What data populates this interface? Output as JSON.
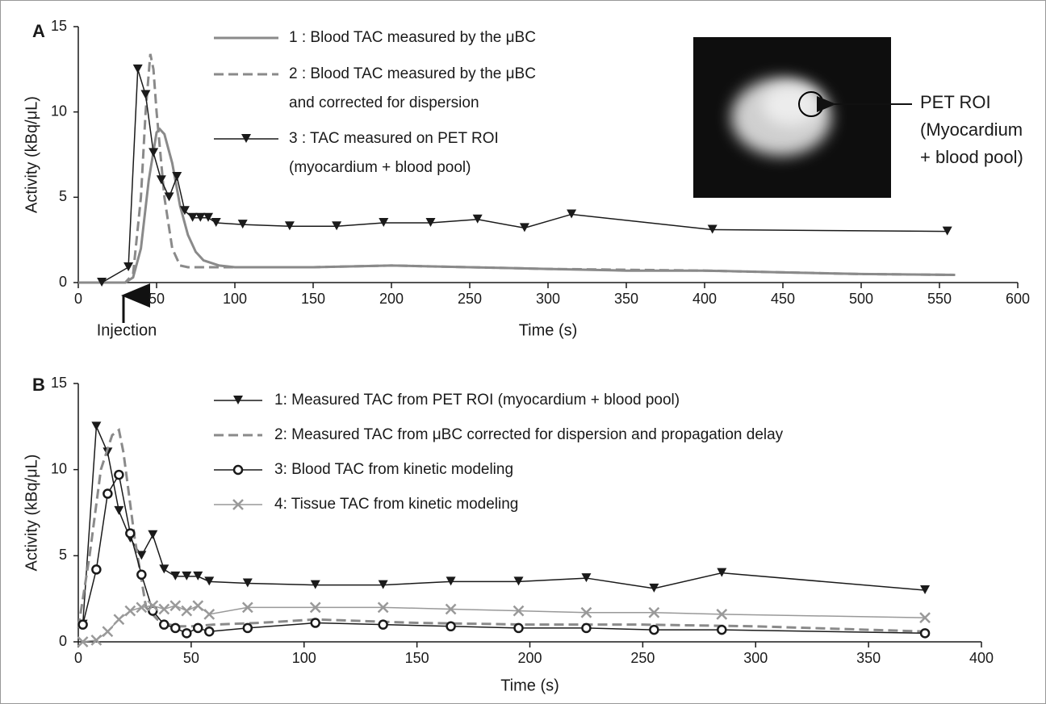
{
  "chart_data": [
    {
      "type": "line",
      "panel_label": "A",
      "xlabel": "Time (s)",
      "ylabel": "Activity (kBq/μL)",
      "xlim": [
        0,
        600
      ],
      "xticks": [
        0,
        50,
        100,
        150,
        200,
        250,
        300,
        350,
        400,
        450,
        500,
        550,
        600
      ],
      "ylim": [
        0,
        15
      ],
      "yticks": [
        0,
        5,
        10,
        15
      ],
      "annotations": [
        "Injection",
        "PET ROI\n(Myocardium\n+ blood pool)"
      ],
      "series": [
        {
          "name": "1 : Blood TAC measured by the μBC",
          "color": "#8a8a8a",
          "dash": false,
          "marker": null,
          "x": [
            0,
            20,
            30,
            35,
            40,
            45,
            50,
            52,
            55,
            60,
            65,
            70,
            75,
            80,
            90,
            100,
            150,
            200,
            250,
            300,
            350,
            400,
            450,
            500,
            560
          ],
          "values": [
            0,
            0,
            0,
            0.3,
            2,
            6,
            8.8,
            9,
            8.7,
            7,
            4.5,
            2.8,
            1.8,
            1.3,
            1.0,
            0.9,
            0.9,
            1.0,
            0.9,
            0.8,
            0.7,
            0.7,
            0.6,
            0.5,
            0.45
          ]
        },
        {
          "name": "2 : Blood TAC measured by the μBC\nand corrected for dispersion",
          "color": "#8a8a8a",
          "dash": true,
          "marker": null,
          "x": [
            0,
            30,
            35,
            40,
            43,
            46,
            48,
            50,
            55,
            60,
            65,
            70,
            80,
            100,
            150,
            200,
            300,
            400,
            500,
            560
          ],
          "values": [
            0,
            0,
            0.5,
            5,
            10,
            13.4,
            12.5,
            10,
            5,
            2,
            1,
            0.9,
            0.9,
            0.9,
            0.9,
            1.0,
            0.8,
            0.7,
            0.5,
            0.45
          ]
        },
        {
          "name": "3 : TAC measured on PET ROI\n(myocardium + blood pool)",
          "color": "#1a1a1a",
          "dash": false,
          "marker": "triangle",
          "x": [
            15,
            32,
            38,
            43,
            48,
            53,
            58,
            63,
            68,
            73,
            78,
            83,
            88,
            105,
            135,
            165,
            195,
            225,
            255,
            285,
            315,
            405,
            555
          ],
          "values": [
            0,
            0.9,
            12.5,
            11,
            7.6,
            6.0,
            5.0,
            6.2,
            4.2,
            3.8,
            3.8,
            3.8,
            3.5,
            3.4,
            3.3,
            3.3,
            3.5,
            3.5,
            3.7,
            3.2,
            4.0,
            3.1,
            3.0
          ]
        }
      ]
    },
    {
      "type": "line",
      "panel_label": "B",
      "xlabel": "Time (s)",
      "ylabel": "Activity (kBq/μL)",
      "xlim": [
        0,
        400
      ],
      "xticks": [
        0,
        50,
        100,
        150,
        200,
        250,
        300,
        350,
        400
      ],
      "ylim": [
        0,
        15
      ],
      "yticks": [
        0,
        5,
        10,
        15
      ],
      "series": [
        {
          "name": "1: Measured TAC from PET ROI  (myocardium + blood pool)",
          "color": "#1a1a1a",
          "dash": false,
          "marker": "triangle",
          "x": [
            2,
            8,
            13,
            18,
            23,
            28,
            33,
            38,
            43,
            48,
            53,
            58,
            75,
            105,
            135,
            165,
            195,
            225,
            255,
            285,
            375
          ],
          "values": [
            1.0,
            12.5,
            11,
            7.6,
            6.0,
            5.0,
            6.2,
            4.2,
            3.8,
            3.8,
            3.8,
            3.5,
            3.4,
            3.3,
            3.3,
            3.5,
            3.5,
            3.7,
            3.1,
            4.0,
            3.0
          ]
        },
        {
          "name": "2: Measured TAC from μBC corrected for dispersion and propagation delay",
          "color": "#8a8a8a",
          "dash": true,
          "marker": null,
          "x": [
            0,
            5,
            10,
            15,
            18,
            20,
            25,
            30,
            35,
            40,
            45,
            50,
            60,
            80,
            105,
            150,
            200,
            250,
            300,
            350,
            375
          ],
          "values": [
            0.8,
            5,
            10,
            12,
            12.3,
            11,
            6,
            2,
            1.3,
            1.0,
            0.9,
            0.9,
            1.0,
            1.1,
            1.3,
            1.1,
            1.0,
            1.0,
            0.9,
            0.7,
            0.6
          ]
        },
        {
          "name": "3: Blood TAC from kinetic modeling",
          "color": "#1a1a1a",
          "dash": false,
          "marker": "circle",
          "x": [
            2,
            8,
            13,
            18,
            23,
            28,
            33,
            38,
            43,
            48,
            53,
            58,
            75,
            105,
            135,
            165,
            195,
            225,
            255,
            285,
            375
          ],
          "values": [
            1.0,
            4.2,
            8.6,
            9.7,
            6.3,
            3.9,
            1.8,
            1.0,
            0.8,
            0.5,
            0.8,
            0.6,
            0.8,
            1.1,
            1.0,
            0.9,
            0.8,
            0.8,
            0.7,
            0.7,
            0.5
          ]
        },
        {
          "name": "4: Tissue TAC from kinetic modeling",
          "color": "#999999",
          "dash": false,
          "marker": "x",
          "x": [
            2,
            8,
            13,
            18,
            23,
            28,
            33,
            38,
            43,
            48,
            53,
            58,
            75,
            105,
            135,
            165,
            195,
            225,
            255,
            285,
            375
          ],
          "values": [
            0,
            0.1,
            0.6,
            1.3,
            1.8,
            2.0,
            2.1,
            1.9,
            2.1,
            1.8,
            2.1,
            1.6,
            2.0,
            2.0,
            2.0,
            1.9,
            1.8,
            1.7,
            1.7,
            1.6,
            1.4
          ]
        }
      ]
    }
  ]
}
